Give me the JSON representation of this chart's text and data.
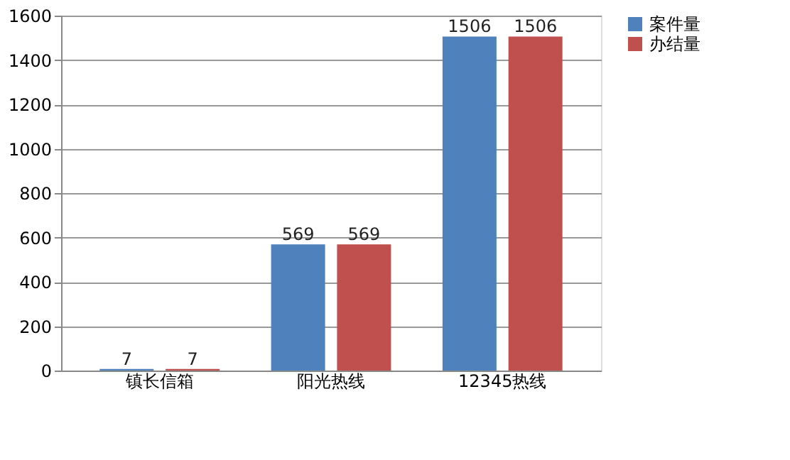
{
  "chart_data": {
    "type": "bar",
    "categories": [
      "镇长信箱",
      "阳光热线",
      "12345热线"
    ],
    "series": [
      {
        "name": "案件量",
        "color": "#4f81bd",
        "values": [
          7,
          569,
          1506
        ]
      },
      {
        "name": "办结量",
        "color": "#c0504d",
        "values": [
          7,
          569,
          1506
        ]
      }
    ],
    "ylim": [
      0,
      1600
    ],
    "yticks": [
      0,
      200,
      400,
      600,
      800,
      1000,
      1200,
      1400,
      1600
    ],
    "grid": "y",
    "legend": "right",
    "data_labels": true
  }
}
